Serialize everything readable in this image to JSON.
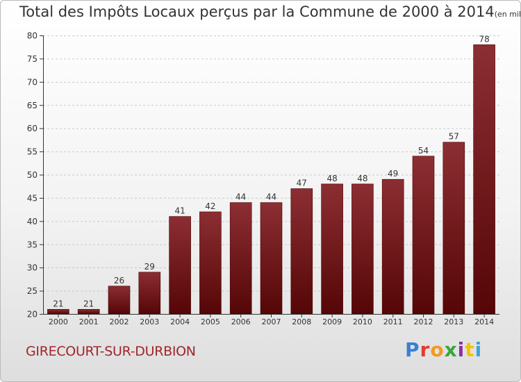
{
  "title": "Total des Impôts Locaux perçus par la Commune de 2000 à 2014",
  "unit_label": "(en milliers d'€)",
  "commune": "GIRECOURT-SUR-DURBION",
  "brand": "Proxiti",
  "colors": {
    "bar_top": "#8c2e33",
    "bar_bottom": "#550606",
    "commune_text": "#a0262a"
  },
  "chart_data": {
    "type": "bar",
    "title": "Total des Impôts Locaux perçus par la Commune de 2000 à 2014",
    "ylabel": "en milliers d'€",
    "xlabel": "",
    "categories": [
      "2000",
      "2001",
      "2002",
      "2003",
      "2004",
      "2005",
      "2006",
      "2007",
      "2008",
      "2009",
      "2010",
      "2011",
      "2012",
      "2013",
      "2014"
    ],
    "values": [
      21,
      21,
      26,
      29,
      41,
      42,
      44,
      44,
      47,
      48,
      48,
      49,
      54,
      57,
      78
    ],
    "ylim": [
      20,
      80
    ],
    "yticks": [
      20,
      25,
      30,
      35,
      40,
      45,
      50,
      55,
      60,
      65,
      70,
      75,
      80
    ],
    "grid": true
  }
}
